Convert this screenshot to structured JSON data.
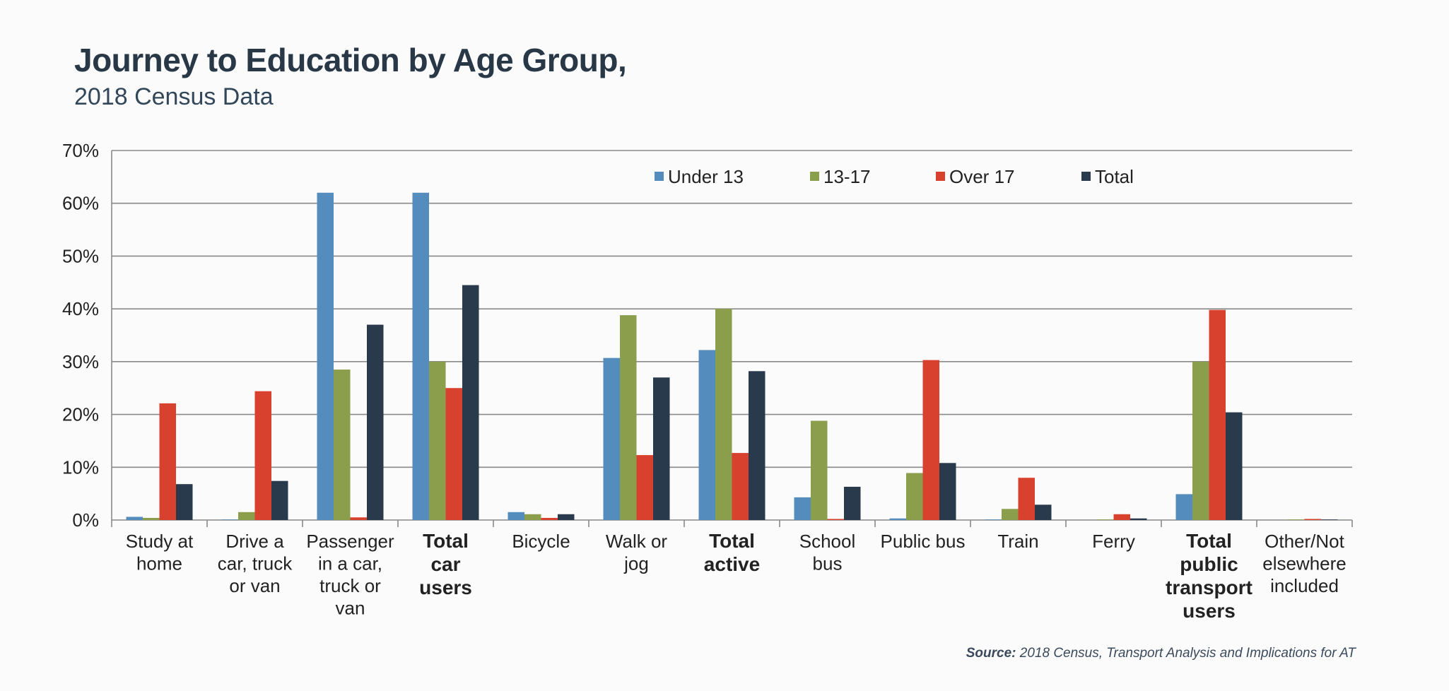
{
  "header": {
    "title": "Journey to Education by Age Group,",
    "subtitle": "2018 Census Data"
  },
  "footer": {
    "source_label": "Source:",
    "source_text": "2018 Census, Transport Analysis and Implications for AT"
  },
  "colors": {
    "under13": "#548dbd",
    "age13_17": "#8a9e4c",
    "over17": "#d9412f",
    "total": "#2a3a4d",
    "grid": "#8a8a8a",
    "text": "#222222"
  },
  "chart_data": {
    "type": "bar",
    "title": "Journey to Education by Age Group,",
    "subtitle": "2018 Census Data",
    "ylim": [
      0,
      70
    ],
    "yticks": [
      0,
      10,
      20,
      30,
      40,
      50,
      60,
      70
    ],
    "ytick_labels": [
      "0%",
      "10%",
      "20%",
      "30%",
      "40%",
      "50%",
      "60%",
      "70%"
    ],
    "grid": true,
    "legend_position": "top-center",
    "categories": [
      {
        "label": [
          "Study at",
          "home"
        ],
        "bold": false
      },
      {
        "label": [
          "Drive a",
          "car, truck",
          "or van"
        ],
        "bold": false
      },
      {
        "label": [
          "Passenger",
          "in a car,",
          "truck or",
          "van"
        ],
        "bold": false
      },
      {
        "label": [
          "Total",
          "car",
          "users"
        ],
        "bold": true
      },
      {
        "label": [
          "Bicycle"
        ],
        "bold": false
      },
      {
        "label": [
          "Walk or",
          "jog"
        ],
        "bold": false
      },
      {
        "label": [
          "Total",
          "active"
        ],
        "bold": true
      },
      {
        "label": [
          "School",
          "bus"
        ],
        "bold": false
      },
      {
        "label": [
          "Public bus"
        ],
        "bold": false
      },
      {
        "label": [
          "Train"
        ],
        "bold": false
      },
      {
        "label": [
          "Ferry"
        ],
        "bold": false
      },
      {
        "label": [
          "Total",
          "public",
          "transport",
          "users"
        ],
        "bold": true
      },
      {
        "label": [
          "Other/Not",
          "elsewhere",
          "included"
        ],
        "bold": false
      }
    ],
    "series": [
      {
        "name": "Under 13",
        "color": "#548dbd",
        "values": [
          0.6,
          0.1,
          62.0,
          62.0,
          1.5,
          30.7,
          32.2,
          4.3,
          0.3,
          0.1,
          0.0,
          4.9,
          0.0
        ]
      },
      {
        "name": "13-17",
        "color": "#8a9e4c",
        "values": [
          0.4,
          1.5,
          28.5,
          30.0,
          1.1,
          38.8,
          40.0,
          18.8,
          8.9,
          2.1,
          0.1,
          30.0,
          0.1
        ]
      },
      {
        "name": "Over 17",
        "color": "#d9412f",
        "values": [
          22.1,
          24.4,
          0.5,
          25.0,
          0.4,
          12.3,
          12.7,
          0.2,
          30.3,
          8.0,
          1.1,
          39.8,
          0.2
        ]
      },
      {
        "name": "Total",
        "color": "#2a3a4d",
        "values": [
          6.8,
          7.4,
          37.0,
          44.5,
          1.1,
          27.0,
          28.2,
          6.3,
          10.8,
          2.9,
          0.3,
          20.4,
          0.1
        ]
      }
    ]
  }
}
